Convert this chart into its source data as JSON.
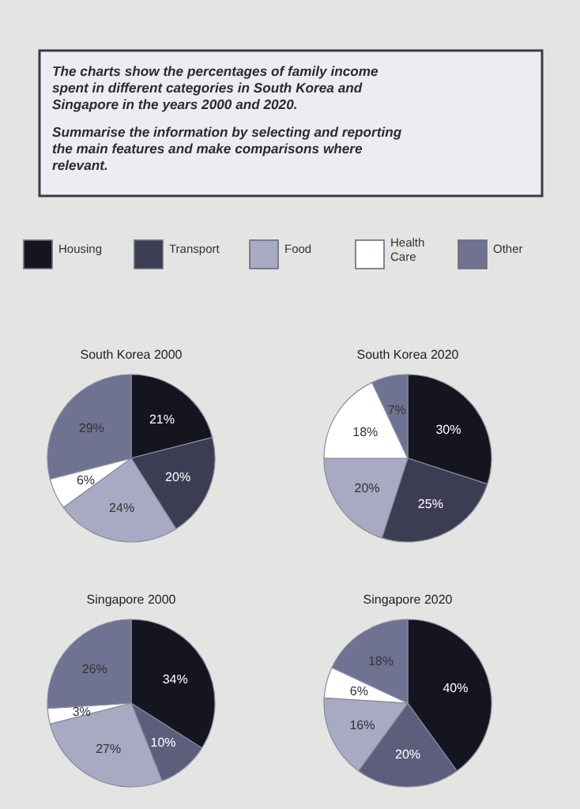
{
  "chart_data": [
    {
      "type": "other",
      "title": "The charts show the percentages of family income spent in different categories in South Korea and Singapore in the years 2000 and 2020.",
      "annotations": [
        "Summarise the information by selecting and reporting the main features and make comparisons where relevant."
      ]
    },
    {
      "type": "pie",
      "title": "South Korea 2000",
      "categories": [
        "Housing",
        "Transport",
        "Food",
        "Health Care",
        "Other"
      ],
      "values": [
        21,
        20,
        24,
        6,
        29
      ],
      "value_labels": [
        "21%",
        "20%",
        "24%",
        "6%",
        "29%"
      ],
      "colors": [
        "#14151f",
        "#3c3d52",
        "#a8a9c2",
        "#ffffff",
        "#707292"
      ],
      "legend": "top"
    },
    {
      "type": "pie",
      "title": "South Korea 2020",
      "categories": [
        null,
        null,
        null,
        null,
        null
      ],
      "values": [
        30,
        25,
        20,
        18,
        7
      ],
      "value_labels": [
        "30%",
        "25%",
        "20%",
        "18%",
        "7%"
      ],
      "colors": [
        "#14151f",
        "#3c3d52",
        "#a8a9c2",
        "#ffffff",
        "#707292"
      ]
    },
    {
      "type": "pie",
      "title": "Singapore 2000",
      "categories": [
        null,
        null,
        null,
        null,
        null
      ],
      "values": [
        34,
        10,
        27,
        3,
        26
      ],
      "value_labels": [
        "34%",
        "10%",
        "27%",
        "3%",
        "26%"
      ],
      "colors": [
        "#14151f",
        "#5c5e7c",
        "#a8a9c2",
        "#ffffff",
        "#707292"
      ]
    },
    {
      "type": "pie",
      "title": "Singapore 2020",
      "categories": [
        null,
        null,
        null,
        null,
        null
      ],
      "values": [
        40,
        20,
        16,
        6,
        18
      ],
      "value_labels": [
        "40%",
        "20%",
        "16%",
        "6%",
        "18%"
      ],
      "colors": [
        "#14151f",
        "#5c5e7c",
        "#a8a9c2",
        "#ffffff",
        "#707292"
      ]
    }
  ]
}
